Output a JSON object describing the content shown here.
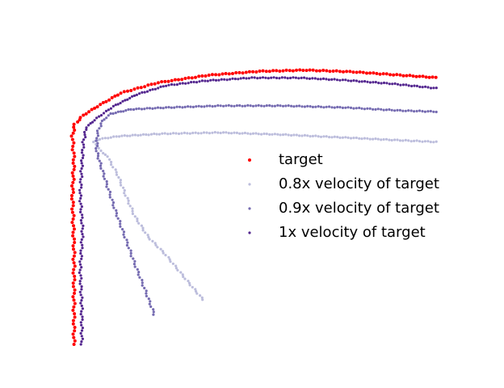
{
  "chart_data": {
    "type": "scatter",
    "title": "",
    "xlabel": "",
    "ylabel": "",
    "axes_visible": false,
    "grid": false,
    "legend_placement": "center-right",
    "xlim": [
      0,
      100
    ],
    "ylim": [
      0,
      100
    ],
    "series": [
      {
        "name": "target",
        "color": "#ff0000",
        "marker_size": "medium",
        "anchors": [
          [
            2.4,
            0
          ],
          [
            2.4,
            32
          ],
          [
            2.0,
            50
          ],
          [
            2.4,
            62
          ],
          [
            2.0,
            70
          ],
          [
            2.6,
            74
          ],
          [
            4.8,
            77
          ],
          [
            8.4,
            80
          ],
          [
            14.4,
            84.5
          ],
          [
            24,
            88
          ],
          [
            37,
            90.5
          ],
          [
            50,
            91.8
          ],
          [
            62,
            92.2
          ],
          [
            74,
            91.6
          ],
          [
            86,
            90.5
          ],
          [
            96,
            89.6
          ]
        ]
      },
      {
        "name": "0.8x velocity of target",
        "color": "#bcbddc",
        "marker_size": "small",
        "anchors": [
          [
            35.5,
            15
          ],
          [
            31,
            22
          ],
          [
            26,
            30
          ],
          [
            21.5,
            36
          ],
          [
            18,
            43
          ],
          [
            15.7,
            50
          ],
          [
            13.6,
            57
          ],
          [
            11,
            63
          ],
          [
            8.2,
            66.5
          ],
          [
            7.4,
            68
          ],
          [
            9,
            69
          ],
          [
            14,
            70
          ],
          [
            25,
            70.8
          ],
          [
            40,
            71.2
          ],
          [
            56,
            70.5
          ],
          [
            72,
            69.5
          ],
          [
            86,
            68.6
          ],
          [
            96,
            68
          ]
        ]
      },
      {
        "name": "0.9x velocity of target",
        "color": "#756bb1",
        "marker_size": "small",
        "anchors": [
          [
            23,
            10
          ],
          [
            20.7,
            18
          ],
          [
            18,
            27
          ],
          [
            15.5,
            36
          ],
          [
            13,
            45
          ],
          [
            11,
            53
          ],
          [
            9.3,
            60
          ],
          [
            8.2,
            65
          ],
          [
            8.4,
            71
          ],
          [
            9.6,
            75
          ],
          [
            11.8,
            77.5
          ],
          [
            17,
            79
          ],
          [
            26,
            79.6
          ],
          [
            40,
            80.2
          ],
          [
            56,
            80.2
          ],
          [
            72,
            79.6
          ],
          [
            86,
            78.6
          ],
          [
            96,
            78.2
          ]
        ]
      },
      {
        "name": "1x velocity of target",
        "color": "#54278f",
        "marker_size": "small",
        "anchors": [
          [
            4.4,
            0
          ],
          [
            4.4,
            12
          ],
          [
            4.0,
            25
          ],
          [
            4.6,
            38
          ],
          [
            4.0,
            50
          ],
          [
            4.4,
            60
          ],
          [
            4.8,
            68
          ],
          [
            5.6,
            73
          ],
          [
            8.2,
            76
          ],
          [
            12.5,
            80
          ],
          [
            18.5,
            84
          ],
          [
            26,
            87
          ],
          [
            36,
            88.6
          ],
          [
            48,
            89.6
          ],
          [
            60,
            89.6
          ],
          [
            72,
            88.8
          ],
          [
            84,
            87.6
          ],
          [
            96,
            86
          ]
        ]
      }
    ]
  }
}
